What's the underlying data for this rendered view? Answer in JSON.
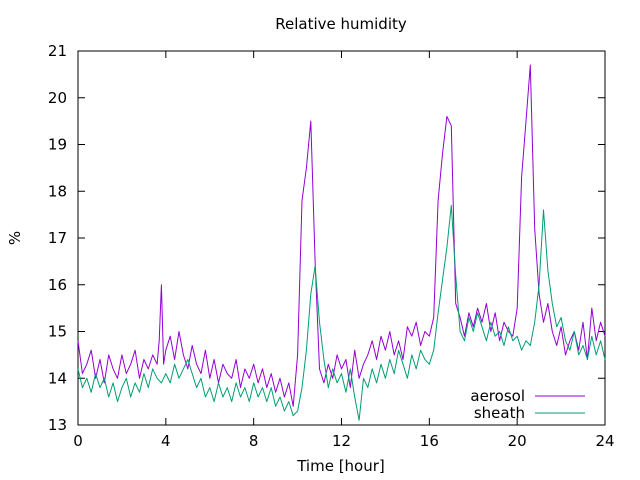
{
  "chart_data": {
    "type": "line",
    "title": "Relative humidity",
    "xlabel": "Time [hour]",
    "ylabel": "%",
    "xlim": [
      0,
      24
    ],
    "ylim": [
      13,
      21
    ],
    "xticks": [
      0,
      4,
      8,
      12,
      16,
      20,
      24
    ],
    "yticks": [
      13,
      14,
      15,
      16,
      17,
      18,
      19,
      20,
      21
    ],
    "grid": false,
    "legend_position": "bottom-right",
    "series": [
      {
        "name": "aerosol",
        "color": "#9400d3",
        "x": [
          0.0,
          0.2,
          0.4,
          0.6,
          0.8,
          1.0,
          1.2,
          1.4,
          1.6,
          1.8,
          2.0,
          2.2,
          2.4,
          2.6,
          2.8,
          3.0,
          3.2,
          3.4,
          3.6,
          3.7,
          3.8,
          3.9,
          4.0,
          4.2,
          4.4,
          4.6,
          4.8,
          5.0,
          5.2,
          5.4,
          5.6,
          5.8,
          6.0,
          6.2,
          6.4,
          6.6,
          6.8,
          7.0,
          7.2,
          7.4,
          7.6,
          7.8,
          8.0,
          8.2,
          8.4,
          8.6,
          8.8,
          9.0,
          9.2,
          9.4,
          9.6,
          9.8,
          10.0,
          10.2,
          10.4,
          10.6,
          10.8,
          11.0,
          11.2,
          11.4,
          11.6,
          11.8,
          12.0,
          12.2,
          12.4,
          12.6,
          12.8,
          13.0,
          13.2,
          13.4,
          13.6,
          13.8,
          14.0,
          14.2,
          14.4,
          14.6,
          14.8,
          15.0,
          15.2,
          15.4,
          15.6,
          15.8,
          16.0,
          16.2,
          16.4,
          16.6,
          16.8,
          17.0,
          17.2,
          17.4,
          17.6,
          17.8,
          18.0,
          18.2,
          18.4,
          18.6,
          18.8,
          19.0,
          19.2,
          19.4,
          19.6,
          19.8,
          20.0,
          20.2,
          20.4,
          20.6,
          20.8,
          21.0,
          21.2,
          21.4,
          21.6,
          21.8,
          22.0,
          22.2,
          22.4,
          22.6,
          22.8,
          23.0,
          23.2,
          23.4,
          23.6,
          23.8,
          24.0
        ],
        "y": [
          14.8,
          14.1,
          14.3,
          14.6,
          14.0,
          14.4,
          13.9,
          14.5,
          14.2,
          14.0,
          14.5,
          14.1,
          14.3,
          14.6,
          14.0,
          14.4,
          14.2,
          14.5,
          14.3,
          14.8,
          16.0,
          14.3,
          14.6,
          14.9,
          14.4,
          15.0,
          14.5,
          14.2,
          14.7,
          14.3,
          14.1,
          14.6,
          14.0,
          14.4,
          13.9,
          14.3,
          14.1,
          14.0,
          14.4,
          13.8,
          14.2,
          14.0,
          14.3,
          13.9,
          14.2,
          13.8,
          14.1,
          13.7,
          14.0,
          13.6,
          13.9,
          13.4,
          14.5,
          17.8,
          18.5,
          19.5,
          16.5,
          14.2,
          13.9,
          14.3,
          14.0,
          14.5,
          14.2,
          14.4,
          13.8,
          14.6,
          14.0,
          14.3,
          14.5,
          14.8,
          14.4,
          14.9,
          14.6,
          15.0,
          14.5,
          14.8,
          14.4,
          15.1,
          14.9,
          15.2,
          14.7,
          15.0,
          14.9,
          15.3,
          17.8,
          18.8,
          19.6,
          19.4,
          15.6,
          15.3,
          14.9,
          15.4,
          15.1,
          15.5,
          15.2,
          15.6,
          15.0,
          15.4,
          14.8,
          15.2,
          15.0,
          14.9,
          15.5,
          18.3,
          19.5,
          20.7,
          17.2,
          15.8,
          15.2,
          15.6,
          15.0,
          14.7,
          15.1,
          14.5,
          14.8,
          15.0,
          14.6,
          15.2,
          14.4,
          15.5,
          14.8,
          15.2,
          14.9
        ]
      },
      {
        "name": "sheath",
        "color": "#009e73",
        "x": [
          0.0,
          0.2,
          0.4,
          0.6,
          0.8,
          1.0,
          1.2,
          1.4,
          1.6,
          1.8,
          2.0,
          2.2,
          2.4,
          2.6,
          2.8,
          3.0,
          3.2,
          3.4,
          3.6,
          3.8,
          4.0,
          4.2,
          4.4,
          4.6,
          4.8,
          5.0,
          5.2,
          5.4,
          5.6,
          5.8,
          6.0,
          6.2,
          6.4,
          6.6,
          6.8,
          7.0,
          7.2,
          7.4,
          7.6,
          7.8,
          8.0,
          8.2,
          8.4,
          8.6,
          8.8,
          9.0,
          9.2,
          9.4,
          9.6,
          9.8,
          10.0,
          10.2,
          10.4,
          10.6,
          10.8,
          11.0,
          11.2,
          11.4,
          11.6,
          11.8,
          12.0,
          12.2,
          12.4,
          12.6,
          12.8,
          13.0,
          13.2,
          13.4,
          13.6,
          13.8,
          14.0,
          14.2,
          14.4,
          14.6,
          14.8,
          15.0,
          15.2,
          15.4,
          15.6,
          15.8,
          16.0,
          16.2,
          16.4,
          16.6,
          16.8,
          17.0,
          17.2,
          17.4,
          17.6,
          17.8,
          18.0,
          18.2,
          18.4,
          18.6,
          18.8,
          19.0,
          19.2,
          19.4,
          19.6,
          19.8,
          20.0,
          20.2,
          20.4,
          20.6,
          20.8,
          21.0,
          21.2,
          21.4,
          21.6,
          21.8,
          22.0,
          22.2,
          22.4,
          22.6,
          22.8,
          23.0,
          23.2,
          23.4,
          23.6,
          23.8,
          24.0
        ],
        "y": [
          14.2,
          13.8,
          14.0,
          13.7,
          14.1,
          13.8,
          14.0,
          13.6,
          13.9,
          13.5,
          13.8,
          14.0,
          13.6,
          13.9,
          13.7,
          14.1,
          13.8,
          14.2,
          14.0,
          13.9,
          14.1,
          13.9,
          14.3,
          14.0,
          14.2,
          14.4,
          14.1,
          13.8,
          14.0,
          13.6,
          13.8,
          13.5,
          13.9,
          13.6,
          13.8,
          13.5,
          13.9,
          13.6,
          13.8,
          13.5,
          13.9,
          13.6,
          13.8,
          13.5,
          13.8,
          13.4,
          13.6,
          13.3,
          13.5,
          13.2,
          13.3,
          13.8,
          14.6,
          15.8,
          16.4,
          15.2,
          14.4,
          13.8,
          14.2,
          13.9,
          14.1,
          13.7,
          14.2,
          13.6,
          13.1,
          14.0,
          13.8,
          14.2,
          13.9,
          14.3,
          14.0,
          14.4,
          14.1,
          14.6,
          14.3,
          14.0,
          14.5,
          14.2,
          14.6,
          14.4,
          14.3,
          14.6,
          15.4,
          16.1,
          16.8,
          17.7,
          16.2,
          15.0,
          14.8,
          15.3,
          15.0,
          15.4,
          15.1,
          14.8,
          15.2,
          14.9,
          15.0,
          14.7,
          15.1,
          14.8,
          14.9,
          14.6,
          14.8,
          14.7,
          15.2,
          16.0,
          17.6,
          16.3,
          15.6,
          15.1,
          15.3,
          14.8,
          14.6,
          15.0,
          14.5,
          14.7,
          14.4,
          14.9,
          14.5,
          14.8,
          14.4
        ]
      }
    ]
  }
}
